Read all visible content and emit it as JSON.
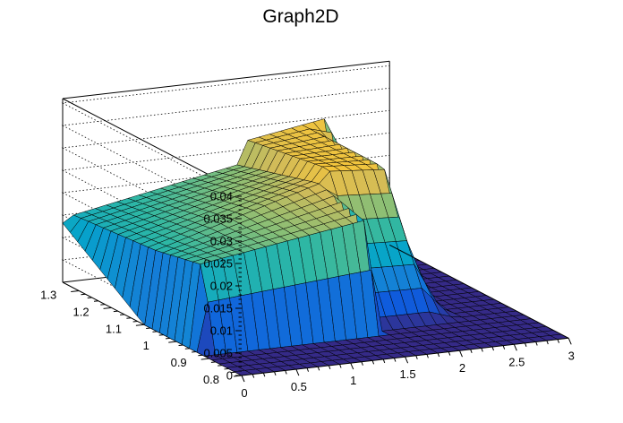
{
  "chart_data": {
    "type": "surface",
    "title": "Graph2D",
    "xlabel": "",
    "ylabel": "",
    "zlabel": "",
    "xlim": [
      0,
      3
    ],
    "ylim": [
      0.8,
      1.35
    ],
    "zlim": [
      0,
      0.041
    ],
    "x_ticks": [
      "0",
      "0.5",
      "1",
      "1.5",
      "2",
      "2.5",
      "3"
    ],
    "y_ticks": [
      "0.8",
      "0.9",
      "1",
      "1.1",
      "1.2",
      "1.3"
    ],
    "z_ticks": [
      "0",
      "0.005",
      "0.01",
      "0.015",
      "0.02",
      "0.025",
      "0.03",
      "0.035",
      "0.04"
    ],
    "grid": true,
    "palette": [
      "#352a87",
      "#0f5cdd",
      "#1481d6",
      "#06a4ca",
      "#2eb7a4",
      "#87bf77",
      "#d1bb59",
      "#fec832",
      "#f9fb0e"
    ],
    "surface_profile": {
      "edges_x": [
        0.0,
        0.05,
        1.65,
        1.7,
        2.2,
        2.45,
        2.55,
        3.0
      ],
      "ridge_z_at_y_0.95": [
        0.0,
        0.0185,
        0.024,
        0.0,
        0.0,
        0.0,
        0.0,
        0.0
      ],
      "ridge_z_at_y_1.1": [
        0.0,
        0.016,
        0.0275,
        0.03,
        0.029,
        0.0,
        0.0,
        0.0
      ],
      "ridge_z_at_y_1.35": [
        0.0132,
        0.0145,
        0.022,
        0.027,
        0.029,
        0.03,
        0.0,
        0.0
      ]
    }
  }
}
